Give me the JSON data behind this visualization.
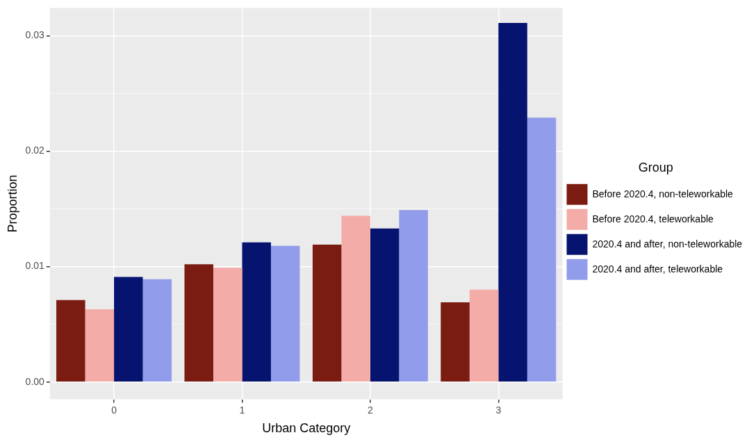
{
  "chart_data": {
    "type": "bar",
    "xlabel": "Urban Category",
    "ylabel": "Proportion",
    "legend_title": "Group",
    "categories": [
      "0",
      "1",
      "2",
      "3"
    ],
    "series": [
      {
        "name": "Before 2020.4, non-teleworkable",
        "color": "#7b1c12",
        "values": [
          0.0071,
          0.0102,
          0.0119,
          0.0069
        ]
      },
      {
        "name": "Before 2020.4, teleworkable",
        "color": "#f4aca9",
        "values": [
          0.0063,
          0.0099,
          0.0144,
          0.008
        ]
      },
      {
        "name": "2020.4 and after, non-teleworkable",
        "color": "#06136f",
        "values": [
          0.0091,
          0.0121,
          0.0133,
          0.0311
        ]
      },
      {
        "name": "2020.4 and after, teleworkable",
        "color": "#919cea",
        "values": [
          0.0089,
          0.0118,
          0.0149,
          0.0229
        ]
      }
    ],
    "ylim": [
      -0.0015,
      0.0324
    ],
    "yticks": [
      {
        "value": 0,
        "label": "0.00"
      },
      {
        "value": 0.01,
        "label": "0.01"
      },
      {
        "value": 0.02,
        "label": "0.02"
      },
      {
        "value": 0.03,
        "label": "0.03"
      }
    ],
    "grid": true,
    "legend": "right"
  }
}
